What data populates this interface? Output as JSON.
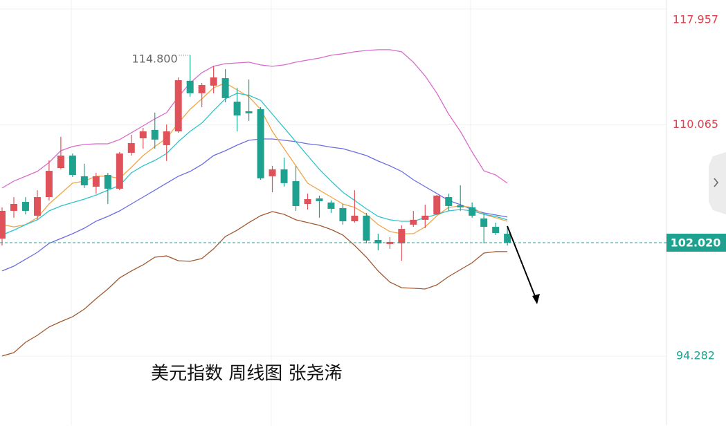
{
  "chart_data": {
    "type": "candlestick",
    "title": "美元指数 周线图 张尧浠",
    "ylim": [
      89.57,
      118.57
    ],
    "yticks": [
      94.282,
      110.065,
      117.957
    ],
    "last_price": {
      "value": 102.02,
      "label": "102.020"
    },
    "high_label": {
      "value": 114.8,
      "label": "114.800"
    },
    "up_color": "#e0525a",
    "down_color": "#1ea28f",
    "up_label_color": "#e0404e",
    "down_label_color": "#1ea28f",
    "open": [
      102.3,
      104.19,
      104.8,
      103.86,
      105.13,
      107.11,
      107.96,
      106.55,
      105.84,
      106.64,
      105.7,
      108.15,
      109.14,
      109.71,
      108.67,
      109.61,
      113.06,
      112.21,
      112.73,
      113.24,
      111.64,
      110.98,
      111.12,
      106.55,
      107.02,
      106.22,
      104.66,
      105.04,
      104.76,
      104.38,
      103.48,
      103.86,
      102.21,
      101.93,
      101.97,
      103.25,
      103.58,
      103.95,
      105.13,
      104.57,
      104.43,
      103.67,
      103.1,
      102.63
    ],
    "high": [
      104.43,
      105.13,
      105.13,
      105.6,
      107.63,
      109.24,
      108.1,
      107.4,
      106.78,
      106.78,
      108.2,
      109.38,
      109.85,
      110.89,
      110.08,
      113.29,
      114.8,
      112.91,
      114.09,
      113.86,
      112.58,
      113.15,
      111.26,
      107.26,
      107.82,
      107.26,
      105.37,
      105.23,
      104.9,
      104.66,
      105.6,
      104.05,
      102.63,
      102.4,
      103.2,
      104.19,
      104.61,
      105.27,
      105.37,
      105.93,
      104.76,
      104.05,
      103.39,
      103.01
    ],
    "low": [
      101.83,
      103.72,
      103.95,
      103.58,
      104.9,
      107.02,
      106.5,
      105.75,
      105.37,
      104.66,
      105.6,
      107.96,
      108.43,
      108.43,
      107.59,
      109.52,
      111.97,
      111.26,
      112.21,
      111.59,
      109.61,
      110.32,
      106.31,
      105.46,
      105.84,
      104.19,
      104.28,
      103.72,
      104.05,
      103.25,
      103.39,
      101.97,
      101.5,
      101.6,
      100.79,
      103.1,
      103.01,
      103.91,
      104.19,
      104.19,
      103.72,
      101.97,
      102.54,
      101.83
    ],
    "close": [
      104.19,
      104.66,
      104.19,
      105.13,
      106.92,
      107.96,
      106.64,
      105.93,
      106.55,
      105.7,
      108.1,
      108.81,
      109.61,
      109.05,
      109.61,
      113.1,
      112.21,
      112.77,
      113.29,
      111.88,
      110.7,
      110.84,
      106.41,
      107.02,
      106.08,
      104.52,
      104.99,
      104.85,
      104.33,
      103.48,
      103.86,
      102.16,
      101.97,
      102.07,
      102.96,
      103.58,
      103.86,
      105.23,
      104.52,
      104.43,
      103.86,
      103.1,
      102.68,
      102.02
    ],
    "lines": [
      {
        "color": "#d86ccd",
        "values": [
          105.75,
          106.22,
          106.55,
          106.88,
          107.49,
          108.29,
          108.58,
          108.72,
          108.76,
          108.76,
          109.05,
          109.52,
          109.99,
          110.46,
          110.89,
          111.97,
          112.91,
          113.62,
          114.05,
          114.23,
          114.28,
          114.33,
          114.14,
          114.05,
          114.14,
          114.33,
          114.47,
          114.61,
          114.8,
          114.9,
          115.04,
          115.13,
          115.18,
          115.18,
          115.04,
          114.33,
          113.39,
          112.21,
          110.79,
          109.61,
          108.2,
          106.92,
          106.64,
          106.08
        ]
      },
      {
        "color": "#6a6de0",
        "values": [
          100.09,
          100.42,
          100.89,
          101.36,
          101.97,
          102.3,
          102.63,
          103.01,
          103.48,
          103.81,
          104.19,
          104.66,
          105.13,
          105.6,
          106.08,
          106.55,
          106.88,
          107.35,
          107.96,
          108.29,
          108.67,
          109.0,
          109.09,
          109.09,
          109.0,
          108.91,
          108.76,
          108.67,
          108.53,
          108.43,
          108.2,
          107.96,
          107.59,
          107.26,
          106.88,
          106.31,
          105.84,
          105.37,
          104.9,
          104.61,
          104.28,
          104.05,
          103.91,
          103.77
        ]
      },
      {
        "color": "#a0582f",
        "values": [
          94.29,
          94.52,
          95.23,
          95.7,
          96.27,
          96.64,
          96.97,
          97.49,
          98.2,
          98.86,
          99.62,
          100.09,
          100.51,
          101.03,
          101.12,
          100.79,
          100.75,
          100.94,
          101.6,
          102.44,
          102.87,
          103.39,
          103.86,
          104.14,
          103.95,
          103.58,
          103.39,
          103.2,
          102.92,
          102.54,
          101.83,
          101.03,
          100.09,
          99.33,
          98.95,
          98.91,
          98.86,
          99.14,
          99.71,
          100.18,
          100.65,
          101.31,
          101.41,
          101.41
        ]
      },
      {
        "color": "#f2a444",
        "values": [
          103.25,
          103.1,
          103.25,
          103.72,
          104.66,
          105.37,
          106.08,
          106.22,
          106.55,
          106.55,
          106.41,
          107.16,
          107.96,
          108.58,
          109.14,
          110.18,
          111.12,
          111.83,
          112.58,
          112.91,
          112.44,
          111.97,
          111.12,
          109.61,
          108.43,
          107.26,
          106.08,
          105.6,
          105.13,
          104.66,
          104.43,
          103.95,
          103.25,
          102.78,
          102.63,
          102.63,
          103.1,
          103.86,
          104.43,
          104.52,
          104.43,
          103.95,
          103.72,
          103.48
        ]
      },
      {
        "color": "#2ec3cc",
        "values": [
          102.54,
          102.87,
          103.25,
          103.58,
          104.19,
          104.52,
          104.76,
          104.99,
          105.27,
          105.6,
          105.93,
          106.78,
          107.26,
          107.63,
          108.1,
          108.91,
          109.61,
          110.18,
          111.03,
          111.83,
          112.21,
          112.07,
          111.73,
          110.79,
          109.85,
          108.91,
          107.96,
          107.02,
          106.22,
          105.46,
          104.9,
          104.33,
          103.81,
          103.58,
          103.48,
          103.48,
          103.72,
          103.95,
          104.19,
          104.28,
          104.19,
          103.95,
          103.81,
          103.58
        ]
      }
    ]
  }
}
